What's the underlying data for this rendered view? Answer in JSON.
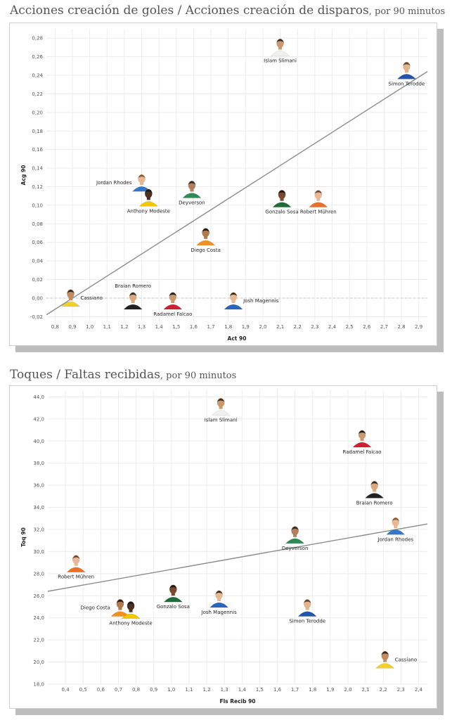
{
  "charts": [
    {
      "title": "Acciones creación de goles / Acciones creación de disparos",
      "subtitle": ", por 90 minutos"
    },
    {
      "title": "Toques / Faltas recibidas",
      "subtitle": ", por 90 minutos"
    }
  ],
  "chart_data": [
    {
      "type": "scatter",
      "title": "Acciones creación de goles / Acciones creación de disparos",
      "subtitle": "por 90 minutos",
      "xlabel": "Act 90",
      "ylabel": "Acg 90",
      "xlim": [
        0.75,
        2.95
      ],
      "ylim": [
        -0.025,
        0.29
      ],
      "xticks": [
        0.8,
        0.9,
        1.0,
        1.1,
        1.2,
        1.3,
        1.4,
        1.5,
        1.6,
        1.7,
        1.8,
        1.9,
        2.0,
        2.1,
        2.2,
        2.3,
        2.4,
        2.5,
        2.6,
        2.7,
        2.8,
        2.9
      ],
      "xtick_labels": [
        "0,8",
        "0,9",
        "1,0",
        "1,1",
        "1,2",
        "1,3",
        "1,4",
        "1,5",
        "1,6",
        "1,7",
        "1,8",
        "1,9",
        "2,0",
        "2,1",
        "2,2",
        "2,3",
        "2,4",
        "2,5",
        "2,6",
        "2,7",
        "2,8",
        "2,9"
      ],
      "yticks": [
        -0.02,
        0.0,
        0.02,
        0.04,
        0.06,
        0.08,
        0.1,
        0.12,
        0.14,
        0.16,
        0.18,
        0.2,
        0.22,
        0.24,
        0.26,
        0.28
      ],
      "ytick_labels": [
        "-0,02",
        "0,00",
        "0,02",
        "0,04",
        "0,06",
        "0,08",
        "0,10",
        "0,12",
        "0,14",
        "0,16",
        "0,18",
        "0,20",
        "0,22",
        "0,24",
        "0,26",
        "0,28"
      ],
      "trendline": {
        "x": [
          0.75,
          2.95
        ],
        "y": [
          -0.018,
          0.244
        ]
      },
      "zero_line": true,
      "points": [
        {
          "name": "Islam Slimani",
          "x": 2.1,
          "y": 0.27,
          "label_pos": "below",
          "skin": "#c89a74",
          "hair": "#3a2a1c",
          "shirt": "#f0f0f0"
        },
        {
          "name": "Simon Terodde",
          "x": 2.83,
          "y": 0.245,
          "label_pos": "below",
          "skin": "#e2b48e",
          "hair": "#5a4636",
          "shirt": "#2255aa"
        },
        {
          "name": "Jordan Rhodes",
          "x": 1.3,
          "y": 0.124,
          "label_pos": "left",
          "skin": "#e6b896",
          "hair": "#8a5b36",
          "shirt": "#3377cc"
        },
        {
          "name": "Anthony Modeste",
          "x": 1.34,
          "y": 0.108,
          "label_pos": "below",
          "skin": "#4a3020",
          "hair": "#1a1a1a",
          "shirt": "#f2c600"
        },
        {
          "name": "Deyverson",
          "x": 1.59,
          "y": 0.117,
          "label_pos": "below",
          "skin": "#b08060",
          "hair": "#2a2a2a",
          "shirt": "#2e8b57"
        },
        {
          "name": "Gonzalo Sosa",
          "x": 2.11,
          "y": 0.107,
          "label_pos": "below",
          "skin": "#7a4a30",
          "hair": "#1a1a1a",
          "shirt": "#1f6b3a"
        },
        {
          "name": "Robert Mühren",
          "x": 2.32,
          "y": 0.107,
          "label_pos": "below",
          "skin": "#e6b896",
          "hair": "#6a4a30",
          "shirt": "#e8702a"
        },
        {
          "name": "Diego Costa",
          "x": 1.67,
          "y": 0.066,
          "label_pos": "below",
          "skin": "#b07a50",
          "hair": "#1a1a1a",
          "shirt": "#f09020"
        },
        {
          "name": "Cassiano",
          "x": 0.89,
          "y": 0.0,
          "label_pos": "right",
          "skin": "#c28a60",
          "hair": "#2a2a2a",
          "shirt": "#f2d02a"
        },
        {
          "name": "Braian Romero",
          "x": 1.25,
          "y": -0.003,
          "label_pos": "above",
          "skin": "#d8a880",
          "hair": "#2a2a2a",
          "shirt": "#222222"
        },
        {
          "name": "Radamel Falcao",
          "x": 1.48,
          "y": -0.003,
          "label_pos": "below",
          "skin": "#c89a74",
          "hair": "#1a1a1a",
          "shirt": "#cc2233"
        },
        {
          "name": "Josh Magennis",
          "x": 1.83,
          "y": -0.003,
          "label_pos": "right",
          "skin": "#e6b896",
          "hair": "#3a2a1c",
          "shirt": "#2a66bb"
        }
      ]
    },
    {
      "type": "scatter",
      "title": "Toques / Faltas recibidas",
      "subtitle": "por 90 minutos",
      "xlabel": "Fls Recib 90",
      "ylabel": "Toq 90",
      "xlim": [
        0.3,
        2.45
      ],
      "ylim": [
        18.0,
        44.6
      ],
      "xticks": [
        0.4,
        0.5,
        0.6,
        0.7,
        0.8,
        0.9,
        1.0,
        1.1,
        1.2,
        1.3,
        1.4,
        1.5,
        1.6,
        1.7,
        1.8,
        1.9,
        2.0,
        2.1,
        2.2,
        2.3,
        2.4
      ],
      "xtick_labels": [
        "0,4",
        "0,5",
        "0,6",
        "0,7",
        "0,8",
        "0,9",
        "1,0",
        "1,1",
        "1,2",
        "1,3",
        "1,4",
        "1,5",
        "1,6",
        "1,7",
        "1,8",
        "1,9",
        "2,0",
        "2,1",
        "2,2",
        "2,3",
        "2,4"
      ],
      "yticks": [
        18,
        20,
        22,
        24,
        26,
        28,
        30,
        32,
        34,
        36,
        38,
        40,
        42,
        44
      ],
      "ytick_labels": [
        "18,0",
        "20,0",
        "22,0",
        "24,0",
        "26,0",
        "28,0",
        "30,0",
        "32,0",
        "34,0",
        "36,0",
        "38,0",
        "40,0",
        "42,0",
        "44,0"
      ],
      "trendline": {
        "x": [
          0.3,
          2.45
        ],
        "y": [
          26.4,
          32.5
        ]
      },
      "zero_line": false,
      "points": [
        {
          "name": "Islam Slimani",
          "x": 1.28,
          "y": 43.1,
          "label_pos": "below",
          "skin": "#c89a74",
          "hair": "#3a2a1c",
          "shirt": "#f0f0f0"
        },
        {
          "name": "Radamel Falcao",
          "x": 2.08,
          "y": 40.2,
          "label_pos": "below",
          "skin": "#c89a74",
          "hair": "#1a1a1a",
          "shirt": "#cc2233"
        },
        {
          "name": "Braian Romero",
          "x": 2.15,
          "y": 35.6,
          "label_pos": "below",
          "skin": "#d8a880",
          "hair": "#2a2a2a",
          "shirt": "#222222"
        },
        {
          "name": "Jordan Rhodes",
          "x": 2.27,
          "y": 32.3,
          "label_pos": "below",
          "skin": "#e6b896",
          "hair": "#8a5b36",
          "shirt": "#3377cc"
        },
        {
          "name": "Deyverson",
          "x": 1.7,
          "y": 31.5,
          "label_pos": "below",
          "skin": "#b08060",
          "hair": "#2a2a2a",
          "shirt": "#2e8b57"
        },
        {
          "name": "Robert Mühren",
          "x": 0.46,
          "y": 28.9,
          "label_pos": "below",
          "skin": "#e6b896",
          "hair": "#6a4a30",
          "shirt": "#e8702a"
        },
        {
          "name": "Diego Costa",
          "x": 0.71,
          "y": 24.9,
          "label_pos": "left",
          "skin": "#b07a50",
          "hair": "#1a1a1a",
          "shirt": "#f09020"
        },
        {
          "name": "Anthony Modeste",
          "x": 0.77,
          "y": 24.7,
          "label_pos": "below",
          "skin": "#4a3020",
          "hair": "#1a1a1a",
          "shirt": "#f2c600"
        },
        {
          "name": "Gonzalo Sosa",
          "x": 1.01,
          "y": 26.2,
          "label_pos": "below",
          "skin": "#7a4a30",
          "hair": "#1a1a1a",
          "shirt": "#1f6b3a"
        },
        {
          "name": "Josh Magennis",
          "x": 1.27,
          "y": 25.7,
          "label_pos": "below",
          "skin": "#e6b896",
          "hair": "#3a2a1c",
          "shirt": "#2a66bb"
        },
        {
          "name": "Simon Terodde",
          "x": 1.77,
          "y": 24.9,
          "label_pos": "below",
          "skin": "#e2b48e",
          "hair": "#5a4636",
          "shirt": "#2255aa"
        },
        {
          "name": "Cassiano",
          "x": 2.21,
          "y": 20.2,
          "label_pos": "right",
          "skin": "#c28a60",
          "hair": "#2a2a2a",
          "shirt": "#f2d02a"
        }
      ]
    }
  ]
}
